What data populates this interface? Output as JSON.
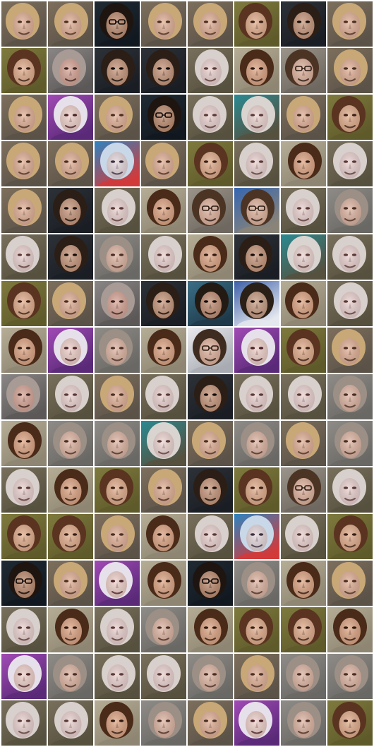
{
  "grid": {
    "rows": 16,
    "cols": 8,
    "border_color": "#ffffff",
    "tiles": [
      [
        "blonde",
        "blonde",
        "dark-glasses",
        "blonde",
        "blonde",
        "brown-olive",
        "dark",
        "blonde"
      ],
      [
        "brown-olive",
        "gray-distorted",
        "dark",
        "dark",
        "pale-rocky",
        "brown",
        "glasses",
        "blonde"
      ],
      [
        "blonde",
        "purple-bald",
        "blonde",
        "dark-glasses",
        "pale-rocky",
        "pale-teal",
        "blonde",
        "brown-olive"
      ],
      [
        "blonde",
        "blonde",
        "child-blue",
        "blonde",
        "brown-olive",
        "pale-rocky",
        "brown",
        "pale-rocky"
      ],
      [
        "blonde",
        "dark",
        "pale-rocky",
        "brown",
        "glasses",
        "glasses-blue",
        "pale-rocky",
        "gray"
      ],
      [
        "pale-rocky",
        "dark",
        "gray",
        "pale-rocky",
        "brown",
        "dark",
        "pale-teal",
        "pale-rocky"
      ],
      [
        "brown-olive",
        "blonde",
        "gray-distorted",
        "dark",
        "dark-teal",
        "dark-blue",
        "brown",
        "pale-rocky"
      ],
      [
        "brown",
        "purple-bald",
        "gray",
        "brown",
        "glasses-white",
        "purple-bald",
        "brown-olive",
        "blonde"
      ],
      [
        "gray-distorted",
        "pale-rocky",
        "blonde",
        "pale-rocky",
        "dark",
        "pale-rocky",
        "pale-rocky",
        "gray"
      ],
      [
        "brown",
        "gray",
        "gray",
        "pale-teal",
        "blonde",
        "gray",
        "blonde",
        "gray"
      ],
      [
        "pale-rocky",
        "brown",
        "brown-olive",
        "blonde",
        "dark",
        "brown-olive",
        "glasses",
        "pale-rocky"
      ],
      [
        "brown-olive",
        "brown-olive",
        "blonde",
        "brown",
        "pale-rocky",
        "child-blue",
        "pale-rocky",
        "brown-olive"
      ],
      [
        "dark-glasses",
        "blonde",
        "purple-bald",
        "brown",
        "dark-glasses",
        "gray",
        "brown",
        "blonde"
      ],
      [
        "pale-rocky",
        "brown",
        "pale-rocky",
        "gray",
        "brown",
        "brown-olive",
        "brown-olive",
        "brown"
      ],
      [
        "purple-bald",
        "gray",
        "pale-rocky",
        "pale-rocky",
        "gray",
        "blonde",
        "gray",
        "gray"
      ],
      [
        "pale-rocky",
        "pale-rocky",
        "brown",
        "gray",
        "blonde",
        "purple-bald",
        "gray",
        "brown-olive"
      ]
    ]
  },
  "palettes": {
    "blonde": {
      "bg": "#7d6f5c",
      "bg2": "#5b5248",
      "hair": "#c9a877",
      "skin": "#e3b39a",
      "feat": "#4a3022"
    },
    "brown-olive": {
      "bg": "#7e7a3e",
      "bg2": "#5f5a2a",
      "hair": "#5a3420",
      "skin": "#e3b090",
      "feat": "#3a2016"
    },
    "brown": {
      "bg": "#b6ad96",
      "bg2": "#8e8672",
      "hair": "#4a2a18",
      "skin": "#dfa888",
      "feat": "#2e1a10"
    },
    "dark": {
      "bg": "#2d3238",
      "bg2": "#1a1e24",
      "hair": "#2b1e16",
      "skin": "#c99a80",
      "feat": "#140c08"
    },
    "dark-glasses": {
      "bg": "#1f2a33",
      "bg2": "#121820",
      "hair": "#1e1510",
      "skin": "#bf8f74",
      "feat": "#0c0806"
    },
    "dark-teal": {
      "bg": "#3b6e86",
      "bg2": "#1e3a4a",
      "hair": "#241a14",
      "skin": "#c4937a",
      "feat": "#100a06"
    },
    "dark-blue": {
      "bg": "#3c5fa8",
      "bg2": "#e5e8ee",
      "hair": "#2a2018",
      "skin": "#caa088",
      "feat": "#120c08"
    },
    "gray": {
      "bg": "#8f8c88",
      "bg2": "#6a6864",
      "hair": "#9b8f86",
      "skin": "#e0b8a6",
      "feat": "#4a2e24"
    },
    "gray-distorted": {
      "bg": "#8a8686",
      "bg2": "#5c5858",
      "hair": "#a89a94",
      "skin": "#d9a89a",
      "feat": "#3c2420"
    },
    "pale-rocky": {
      "bg": "#78705c",
      "bg2": "#56503e",
      "hair": "#d8d0cc",
      "skin": "#ecd4d2",
      "feat": "#5a3a36"
    },
    "pale-teal": {
      "bg": "#2a8a92",
      "bg2": "#56503e",
      "hair": "#d9d4d0",
      "skin": "#eed7d4",
      "feat": "#5a3a36"
    },
    "purple-bald": {
      "bg": "#a04ab4",
      "bg2": "#5a2a78",
      "hair": "#e6e0ea",
      "skin": "#f0d2cc",
      "feat": "#4a2228"
    },
    "child-blue": {
      "bg": "#2d84c0",
      "bg2": "#d23a3a",
      "hair": "#c8d8e8",
      "skin": "#e8dade",
      "feat": "#3a3040"
    },
    "glasses": {
      "bg": "#9a948a",
      "bg2": "#6e6860",
      "hair": "#4c3424",
      "skin": "#e2b6a2",
      "feat": "#2a1a12"
    },
    "glasses-blue": {
      "bg": "#3566b0",
      "bg2": "#8a8478",
      "hair": "#4c3424",
      "skin": "#e2b6a2",
      "feat": "#2a1a12"
    },
    "glasses-white": {
      "bg": "#e8eaee",
      "bg2": "#a8acb2",
      "hair": "#3e2c20",
      "skin": "#e2b6a2",
      "feat": "#2a1a12"
    }
  }
}
